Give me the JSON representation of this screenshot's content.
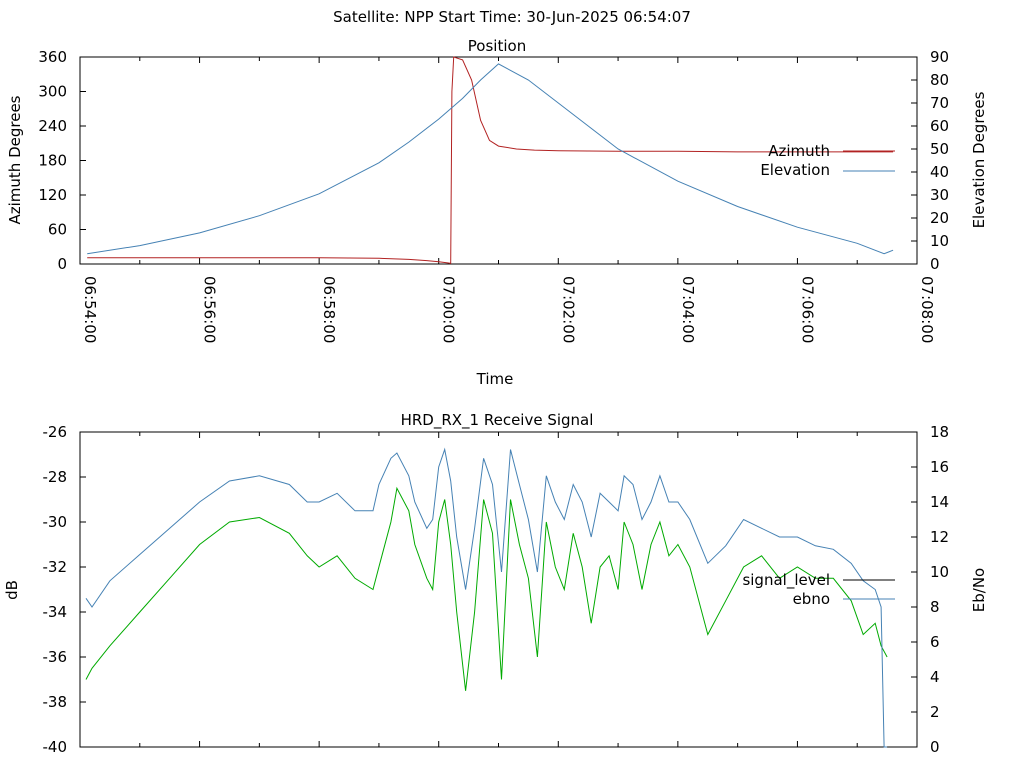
{
  "header": {
    "title": "Satellite: NPP    Start Time: 30-Jun-2025 06:54:07"
  },
  "chart_data": [
    {
      "type": "line",
      "title": "Position",
      "xlabel": "Time",
      "ylabel_left": "Azimuth Degrees",
      "ylabel_right": "Elevation Degrees",
      "x_ticks": [
        "06:54:00",
        "06:56:00",
        "06:58:00",
        "07:00:00",
        "07:02:00",
        "07:04:00",
        "07:06:00",
        "07:08:00"
      ],
      "x_range_minutes": [
        0,
        14
      ],
      "ylim_left": [
        0,
        360
      ],
      "yticks_left": [
        0,
        60,
        120,
        180,
        240,
        300,
        360
      ],
      "ylim_right": [
        0,
        90
      ],
      "yticks_right": [
        0,
        10,
        20,
        30,
        40,
        50,
        60,
        70,
        80,
        90
      ],
      "grid": false,
      "legend_position": "right",
      "series": [
        {
          "name": "Azimuth",
          "axis": "left",
          "color": "#b22222",
          "x_minutes": [
            0.12,
            2.0,
            4.0,
            5.0,
            5.5,
            5.8,
            6.0,
            6.15,
            6.2,
            6.22,
            6.25,
            6.4,
            6.55,
            6.7,
            6.85,
            7.0,
            7.3,
            7.6,
            8.0,
            9.0,
            10.0,
            11.0,
            12.0,
            13.0,
            13.6
          ],
          "values": [
            11,
            11,
            11,
            10,
            8,
            6,
            4,
            2,
            1,
            300,
            360,
            355,
            320,
            250,
            215,
            205,
            200,
            198,
            197,
            196,
            196,
            195,
            195,
            195,
            195
          ]
        },
        {
          "name": "Elevation",
          "axis": "right",
          "color": "#4682b4",
          "x_minutes": [
            0.12,
            1.0,
            2.0,
            3.0,
            4.0,
            5.0,
            5.5,
            6.0,
            6.4,
            6.7,
            7.0,
            7.5,
            8.0,
            8.5,
            9.0,
            10.0,
            11.0,
            12.0,
            13.0,
            13.45,
            13.6
          ],
          "values": [
            4.5,
            8,
            13.5,
            21,
            30.5,
            44,
            53,
            63,
            72,
            80,
            87,
            80,
            70,
            60,
            50,
            36,
            25,
            16,
            9,
            4.5,
            6
          ]
        }
      ]
    },
    {
      "type": "line",
      "title": "HRD_RX_1 Receive Signal",
      "ylabel_left": "dB",
      "ylabel_right": "Eb/No",
      "x_range_minutes": [
        0,
        14
      ],
      "ylim_left": [
        -40,
        -26
      ],
      "yticks_left": [
        -40,
        -38,
        -36,
        -34,
        -32,
        -30,
        -28,
        -26
      ],
      "ylim_right": [
        0,
        18
      ],
      "yticks_right": [
        0,
        2,
        4,
        6,
        8,
        10,
        12,
        14,
        16,
        18
      ],
      "grid": false,
      "legend_position": "right",
      "series": [
        {
          "name": "signal_level",
          "axis": "left",
          "color": "#00aa00",
          "x_minutes": [
            0.1,
            0.2,
            0.5,
            1.0,
            1.5,
            2.0,
            2.5,
            3.0,
            3.5,
            3.8,
            4.0,
            4.3,
            4.6,
            4.9,
            5.0,
            5.2,
            5.3,
            5.5,
            5.6,
            5.8,
            5.9,
            6.0,
            6.1,
            6.2,
            6.3,
            6.45,
            6.6,
            6.75,
            6.9,
            7.05,
            7.2,
            7.35,
            7.5,
            7.65,
            7.8,
            7.95,
            8.1,
            8.25,
            8.4,
            8.55,
            8.7,
            8.85,
            9.0,
            9.1,
            9.25,
            9.4,
            9.55,
            9.7,
            9.85,
            10.0,
            10.2,
            10.5,
            10.8,
            11.1,
            11.4,
            11.7,
            12.0,
            12.3,
            12.6,
            12.9,
            13.1,
            13.3,
            13.4,
            13.5
          ],
          "values": [
            -37,
            -36.5,
            -35.5,
            -34,
            -32.5,
            -31,
            -30,
            -29.8,
            -30.5,
            -31.5,
            -32,
            -31.5,
            -32.5,
            -33,
            -32,
            -30,
            -28.5,
            -29.5,
            -31,
            -32.5,
            -33,
            -30,
            -29,
            -31,
            -34,
            -37.5,
            -34,
            -29,
            -30.5,
            -37,
            -29,
            -31,
            -32.5,
            -36,
            -30,
            -32,
            -33,
            -30.5,
            -32,
            -34.5,
            -32,
            -31.5,
            -33,
            -30,
            -31,
            -33,
            -31,
            -30,
            -31.5,
            -31,
            -32,
            -35,
            -33.5,
            -32,
            -31.5,
            -32.5,
            -32,
            -32.5,
            -32.5,
            -33.5,
            -35,
            -34.5,
            -35.5,
            -36
          ]
        },
        {
          "name": "ebno",
          "axis": "right",
          "color": "#4682b4",
          "x_minutes": [
            0.1,
            0.2,
            0.5,
            1.0,
            1.5,
            2.0,
            2.5,
            3.0,
            3.5,
            3.8,
            4.0,
            4.3,
            4.6,
            4.9,
            5.0,
            5.2,
            5.3,
            5.5,
            5.6,
            5.8,
            5.9,
            6.0,
            6.1,
            6.2,
            6.3,
            6.45,
            6.6,
            6.75,
            6.9,
            7.05,
            7.2,
            7.35,
            7.5,
            7.65,
            7.8,
            7.95,
            8.1,
            8.25,
            8.4,
            8.55,
            8.7,
            8.85,
            9.0,
            9.1,
            9.25,
            9.4,
            9.55,
            9.7,
            9.85,
            10.0,
            10.2,
            10.5,
            10.8,
            11.1,
            11.4,
            11.7,
            12.0,
            12.3,
            12.6,
            12.9,
            13.1,
            13.3,
            13.4,
            13.45,
            13.5
          ],
          "values": [
            8.5,
            8,
            9.5,
            11,
            12.5,
            14,
            15.2,
            15.5,
            15,
            14,
            14,
            14.5,
            13.5,
            13.5,
            15,
            16.5,
            16.8,
            15.5,
            14,
            12.5,
            13,
            16,
            17,
            15.2,
            12,
            9,
            12.5,
            16.5,
            15,
            10,
            17,
            15,
            13,
            10,
            15.5,
            14,
            13,
            15,
            14,
            12,
            14.5,
            14,
            13.5,
            15.5,
            15,
            13,
            14,
            15.5,
            14,
            14,
            13,
            10.5,
            11.5,
            13,
            12.5,
            12,
            12,
            11.5,
            11.3,
            10.5,
            9.5,
            9,
            8,
            0,
            0
          ]
        }
      ]
    }
  ]
}
